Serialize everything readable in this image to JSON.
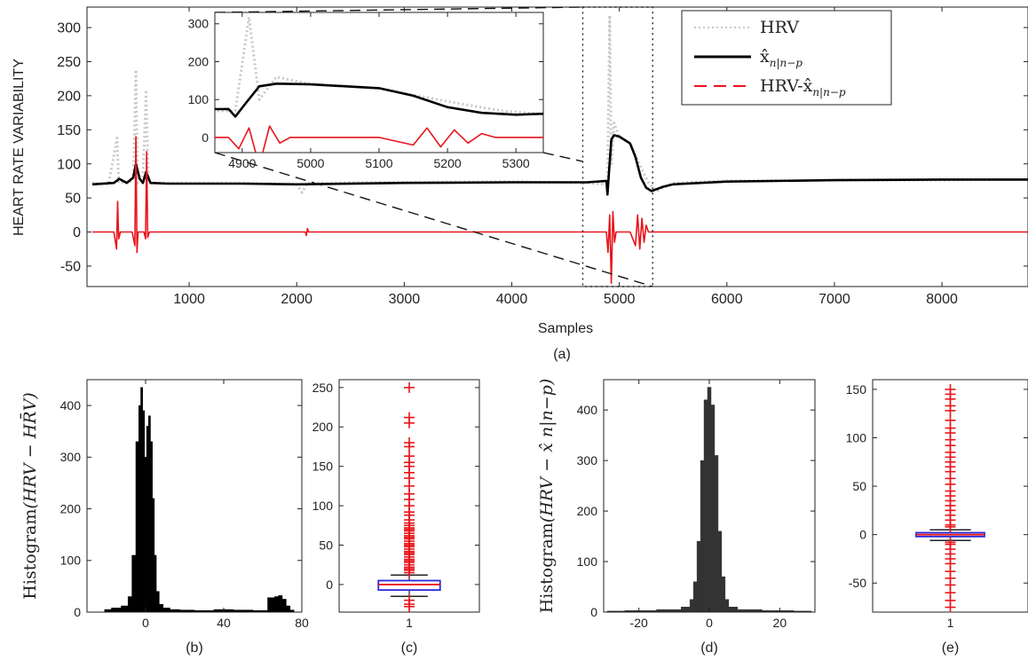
{
  "chart_data": [
    {
      "id": "a",
      "type": "line",
      "caption": "(a)",
      "xlabel": "Samples",
      "ylabel": "HEART RATE VARIABILITY",
      "xlim": [
        50,
        8800
      ],
      "ylim": [
        -80,
        330
      ],
      "xticks": [
        1000,
        2000,
        3000,
        4000,
        5000,
        6000,
        7000,
        8000
      ],
      "yticks": [
        -50,
        0,
        50,
        100,
        150,
        200,
        250,
        300
      ],
      "legend": {
        "placement": "top-right",
        "entries": [
          {
            "label": "HRV",
            "style": "dotted",
            "color": "#c8c8c8"
          },
          {
            "label": "x̂",
            "sub": "n|n−p",
            "style": "solid",
            "color": "#000000"
          },
          {
            "label": "HRV-x̂",
            "sub": "n|n−p",
            "style": "dashed",
            "color": "#e8141b"
          }
        ]
      },
      "series": [
        {
          "name": "HRV",
          "color": "#c8c8c8",
          "points": [
            [
              100,
              72
            ],
            [
              250,
              70
            ],
            [
              330,
              138
            ],
            [
              345,
              72
            ],
            [
              400,
              73
            ],
            [
              480,
              75
            ],
            [
              505,
              238
            ],
            [
              520,
              72
            ],
            [
              570,
              80
            ],
            [
              600,
              205
            ],
            [
              620,
              72
            ],
            [
              800,
              72
            ],
            [
              1500,
              72
            ],
            [
              2000,
              70
            ],
            [
              2050,
              58
            ],
            [
              2100,
              72
            ],
            [
              3000,
              73
            ],
            [
              4000,
              74
            ],
            [
              4700,
              72
            ],
            [
              4890,
              70
            ],
            [
              4910,
              318
            ],
            [
              4925,
              100
            ],
            [
              4950,
              160
            ],
            [
              5000,
              140
            ],
            [
              5100,
              130
            ],
            [
              5200,
              95
            ],
            [
              5280,
              70
            ],
            [
              5350,
              60
            ],
            [
              5500,
              72
            ],
            [
              6000,
              75
            ],
            [
              7000,
              76
            ],
            [
              8000,
              76
            ],
            [
              8800,
              77
            ]
          ]
        },
        {
          "name": "x̂ n|n−p",
          "color": "#000000",
          "points": [
            [
              100,
              70
            ],
            [
              300,
              72
            ],
            [
              350,
              78
            ],
            [
              420,
              72
            ],
            [
              480,
              80
            ],
            [
              505,
              100
            ],
            [
              540,
              78
            ],
            [
              570,
              72
            ],
            [
              600,
              88
            ],
            [
              640,
              72
            ],
            [
              800,
              71
            ],
            [
              1500,
              71
            ],
            [
              2000,
              70
            ],
            [
              3000,
              72
            ],
            [
              4000,
              73
            ],
            [
              4700,
              73
            ],
            [
              4880,
              75
            ],
            [
              4890,
              55
            ],
            [
              4905,
              90
            ],
            [
              4925,
              135
            ],
            [
              4950,
              142
            ],
            [
              5000,
              140
            ],
            [
              5100,
              130
            ],
            [
              5150,
              110
            ],
            [
              5200,
              80
            ],
            [
              5250,
              65
            ],
            [
              5300,
              60
            ],
            [
              5400,
              66
            ],
            [
              5500,
              70
            ],
            [
              6000,
              74
            ],
            [
              7000,
              76
            ],
            [
              8000,
              77
            ],
            [
              8800,
              77
            ]
          ]
        },
        {
          "name": "HRV-x̂ n|n−p",
          "color": "#e8141b",
          "points": [
            [
              100,
              0
            ],
            [
              300,
              0
            ],
            [
              325,
              -25
            ],
            [
              335,
              45
            ],
            [
              345,
              -10
            ],
            [
              360,
              0
            ],
            [
              470,
              0
            ],
            [
              495,
              -20
            ],
            [
              505,
              140
            ],
            [
              515,
              -30
            ],
            [
              525,
              0
            ],
            [
              580,
              0
            ],
            [
              595,
              -10
            ],
            [
              605,
              118
            ],
            [
              615,
              -8
            ],
            [
              630,
              0
            ],
            [
              2080,
              0
            ],
            [
              2090,
              -5
            ],
            [
              2100,
              5
            ],
            [
              2110,
              0
            ],
            [
              4880,
              0
            ],
            [
              4895,
              -30
            ],
            [
              4910,
              25
            ],
            [
              4925,
              -75
            ],
            [
              4940,
              30
            ],
            [
              4955,
              -15
            ],
            [
              4970,
              0
            ],
            [
              5100,
              0
            ],
            [
              5150,
              -20
            ],
            [
              5170,
              25
            ],
            [
              5190,
              -25
            ],
            [
              5210,
              20
            ],
            [
              5230,
              -15
            ],
            [
              5250,
              10
            ],
            [
              5270,
              0
            ],
            [
              8800,
              0
            ]
          ]
        }
      ],
      "zoom_box": {
        "x": [
          4660,
          5310
        ],
        "y": [
          -80,
          330
        ]
      },
      "inset": {
        "xlim": [
          4860,
          5340
        ],
        "ylim": [
          -40,
          330
        ],
        "xticks": [
          4900,
          5000,
          5100,
          5200,
          5300
        ],
        "yticks": [
          0,
          100,
          200,
          300
        ]
      }
    },
    {
      "id": "b",
      "type": "bar",
      "caption": "(b)",
      "ylabel": "Histogram",
      "ylabel_math": "(HRV − HR̄V)",
      "xlim": [
        -30,
        80
      ],
      "ylim": [
        0,
        450
      ],
      "xticks": [
        0,
        40,
        80
      ],
      "yticks": [
        0,
        100,
        200,
        300,
        400
      ],
      "bins_x": [
        -20,
        -15,
        -10,
        -8,
        -6,
        -4,
        -3,
        -2,
        -1,
        0,
        1,
        2,
        3,
        4,
        5,
        6,
        8,
        10,
        15,
        20,
        30,
        40,
        50,
        60,
        65,
        67,
        69,
        71,
        73,
        75
      ],
      "bins_y": [
        5,
        8,
        12,
        30,
        110,
        330,
        400,
        435,
        390,
        300,
        360,
        380,
        330,
        220,
        110,
        40,
        15,
        8,
        5,
        4,
        3,
        5,
        4,
        3,
        28,
        30,
        32,
        25,
        12,
        4
      ]
    },
    {
      "id": "c",
      "type": "box",
      "caption": "(c)",
      "xtick": "1",
      "ylim": [
        -35,
        260
      ],
      "yticks": [
        0,
        50,
        100,
        150,
        200,
        250
      ],
      "box": {
        "q1": -7,
        "median": 0,
        "q3": 5,
        "whisker_low": -15,
        "whisker_high": 12
      },
      "outliers": [
        250,
        212,
        205,
        180,
        175,
        163,
        155,
        150,
        142,
        135,
        125,
        115,
        108,
        100,
        92,
        88,
        82,
        78,
        75,
        72,
        70,
        68,
        65,
        62,
        60,
        58,
        55,
        52,
        50,
        48,
        45,
        42,
        40,
        38,
        35,
        32,
        30,
        28,
        25,
        22,
        20,
        18,
        15,
        -20,
        -25,
        -28
      ]
    },
    {
      "id": "d",
      "type": "bar",
      "caption": "(d)",
      "ylabel": "Histogram",
      "ylabel_math": "(HRV − x̂ n|n−p)",
      "xlim": [
        -30,
        30
      ],
      "ylim": [
        0,
        460
      ],
      "xticks": [
        -20,
        0,
        20
      ],
      "yticks": [
        0,
        100,
        200,
        300,
        400
      ],
      "bins_x": [
        -28,
        -20,
        -10,
        -6,
        -5,
        -4,
        -3,
        -2,
        -1,
        0,
        1,
        2,
        3,
        4,
        5,
        6,
        10,
        20,
        28
      ],
      "bins_y": [
        2,
        3,
        5,
        10,
        25,
        60,
        140,
        300,
        420,
        445,
        410,
        310,
        160,
        70,
        25,
        10,
        5,
        3,
        2
      ]
    },
    {
      "id": "e",
      "type": "box",
      "caption": "(e)",
      "xtick": "1",
      "ylim": [
        -80,
        160
      ],
      "yticks": [
        -50,
        0,
        50,
        100,
        150
      ],
      "box": {
        "q1": -2,
        "median": 0,
        "q3": 2,
        "whisker_low": -6,
        "whisker_high": 5
      },
      "outliers": [
        150,
        145,
        140,
        133,
        128,
        118,
        110,
        105,
        98,
        92,
        85,
        80,
        75,
        70,
        65,
        58,
        52,
        45,
        40,
        35,
        30,
        25,
        20,
        15,
        10,
        8,
        -8,
        -10,
        -15,
        -20,
        -25,
        -30,
        -38,
        -45,
        -52,
        -60,
        -68,
        -75
      ]
    }
  ]
}
